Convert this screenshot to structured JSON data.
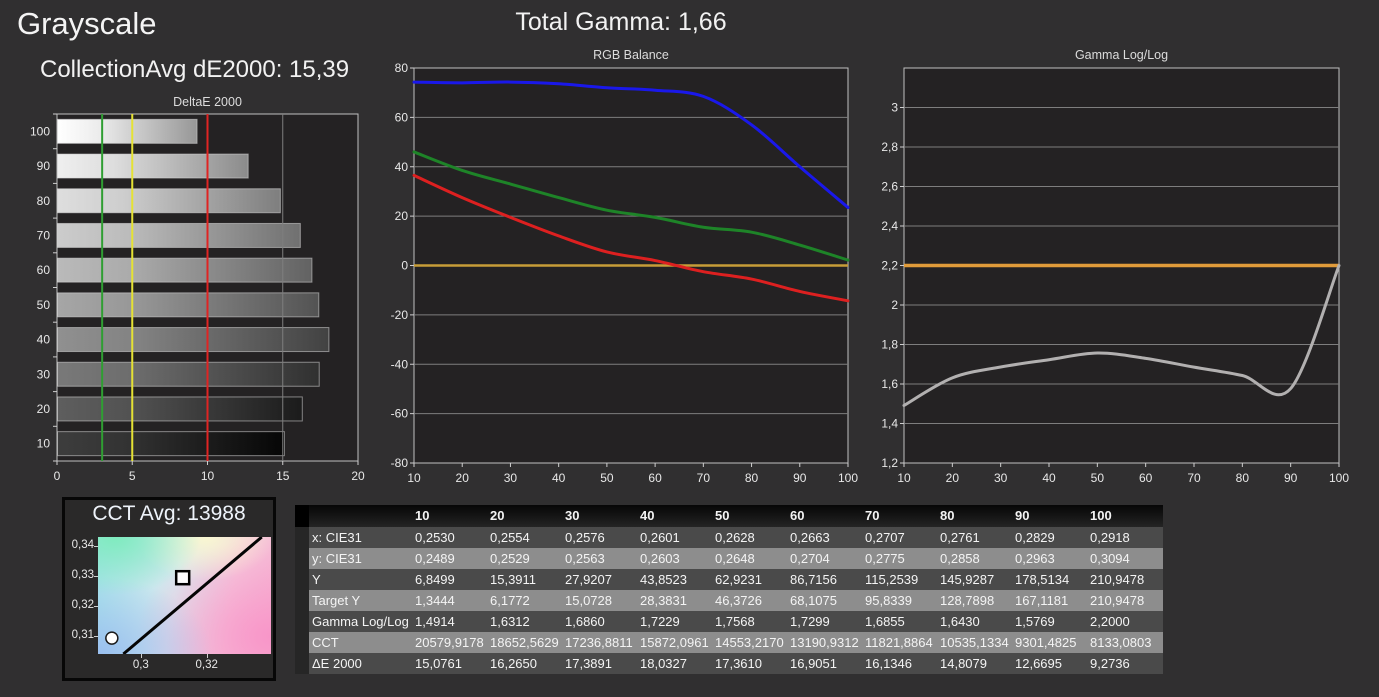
{
  "header": {
    "title": "Grayscale",
    "collection_avg": "CollectionAvg dE2000: 15,39",
    "total_gamma": "Total Gamma: 1,66"
  },
  "colors": {
    "page_bg": "#302f30",
    "plot_bg": "#242223",
    "plot_border": "#c0c0c0",
    "gridline": "#7e7e7e",
    "tick": "#cfcfcf",
    "red_series": "#dd2020",
    "green_series": "#1e8428",
    "blue_series": "#1a18ea",
    "gamma_series": "#b2b0b0",
    "target_yellow": "#c79d38",
    "target_orange": "#e09b3a",
    "ref_green": "#2f9e32",
    "ref_yellow": "#e5e234",
    "ref_red": "#e02423",
    "locus_black": "#050505",
    "marker_white": "#ffffff"
  },
  "chart_data": [
    {
      "id": "deltae",
      "type": "bar",
      "title": "DeltaE 2000",
      "orientation": "horizontal",
      "categories": [
        "100",
        "90",
        "80",
        "70",
        "60",
        "50",
        "40",
        "30",
        "20",
        "10"
      ],
      "values": [
        9.2736,
        12.6695,
        14.8079,
        16.1346,
        16.9051,
        17.361,
        18.0327,
        17.3891,
        16.265,
        15.0761
      ],
      "xlim": [
        0,
        20
      ],
      "xticks": [
        0,
        5,
        10,
        15,
        20
      ],
      "xtick_labels": [
        "0",
        "5",
        "10",
        "15",
        "20"
      ],
      "grid_x": [
        15
      ],
      "reference_lines": [
        {
          "value": 3,
          "color_key": "ref_green"
        },
        {
          "value": 5,
          "color_key": "ref_yellow"
        },
        {
          "value": 10,
          "color_key": "ref_red"
        }
      ]
    },
    {
      "id": "rgb_balance",
      "type": "line",
      "title": "RGB Balance",
      "x": [
        10,
        20,
        30,
        40,
        50,
        60,
        70,
        80,
        90,
        100
      ],
      "xtick_labels": [
        "10",
        "20",
        "30",
        "40",
        "50",
        "60",
        "70",
        "80",
        "90",
        "100"
      ],
      "ylim": [
        -80,
        80
      ],
      "yticks": [
        {
          "v": 80,
          "label": "80"
        },
        {
          "v": 60,
          "label": "60"
        },
        {
          "v": 40,
          "label": "40"
        },
        {
          "v": 20,
          "label": "20"
        },
        {
          "v": 0,
          "label": "0"
        },
        {
          "v": -20,
          "label": "-20"
        },
        {
          "v": -40,
          "label": "-40"
        },
        {
          "v": -60,
          "label": "-60"
        },
        {
          "v": -80,
          "label": "-80"
        }
      ],
      "target_line": {
        "value": 0,
        "color_key": "target_yellow",
        "width": 2.5
      },
      "series": [
        {
          "name": "Red",
          "color_key": "red_series",
          "values": [
            36.5,
            27.5,
            19.5,
            12,
            5.5,
            2,
            -2.5,
            -5.5,
            -10.5,
            -14.3
          ]
        },
        {
          "name": "Green",
          "color_key": "green_series",
          "values": [
            46,
            38.5,
            33,
            27.5,
            22.4,
            19.5,
            15.5,
            13.5,
            8.3,
            2.2
          ]
        },
        {
          "name": "Blue",
          "color_key": "blue_series",
          "values": [
            74.3,
            74,
            74.3,
            73.6,
            72,
            71,
            68.5,
            57,
            40,
            23.5
          ]
        }
      ]
    },
    {
      "id": "gamma_loglog",
      "type": "line",
      "title": "Gamma Log/Log",
      "x": [
        10,
        20,
        30,
        40,
        50,
        60,
        70,
        80,
        90,
        100
      ],
      "xtick_labels": [
        "10",
        "20",
        "30",
        "40",
        "50",
        "60",
        "70",
        "80",
        "90",
        "100"
      ],
      "ylim": [
        1.2,
        3.2
      ],
      "yticks": [
        {
          "v": 3,
          "label": "3"
        },
        {
          "v": 2.8,
          "label": "2,8"
        },
        {
          "v": 2.6,
          "label": "2,6"
        },
        {
          "v": 2.4,
          "label": "2,4"
        },
        {
          "v": 2.2,
          "label": "2,2"
        },
        {
          "v": 2,
          "label": "2"
        },
        {
          "v": 1.8,
          "label": "1,8"
        },
        {
          "v": 1.6,
          "label": "1,6"
        },
        {
          "v": 1.4,
          "label": "1,4"
        },
        {
          "v": 1.2,
          "label": "1,2"
        }
      ],
      "target_line": {
        "value": 2.2,
        "color_key": "target_orange",
        "width": 3.5
      },
      "series": [
        {
          "name": "Gamma",
          "color_key": "gamma_series",
          "values": [
            1.4914,
            1.6312,
            1.686,
            1.7229,
            1.7568,
            1.7299,
            1.6855,
            1.643,
            1.5769,
            2.2
          ]
        }
      ]
    },
    {
      "id": "cct",
      "type": "scatter",
      "title": "CCT Avg: 13988",
      "xlim": [
        0.287,
        0.3395
      ],
      "ylim": [
        0.3039,
        0.343
      ],
      "xticks": [
        {
          "v": 0.3,
          "label": "0,3"
        },
        {
          "v": 0.32,
          "label": "0,32"
        }
      ],
      "yticks": [
        {
          "v": 0.34,
          "label": "0,34"
        },
        {
          "v": 0.33,
          "label": "0,33"
        },
        {
          "v": 0.32,
          "label": "0,32"
        },
        {
          "v": 0.31,
          "label": "0,31"
        }
      ],
      "locus_line": {
        "x1": 0.2947,
        "y1": 0.3039,
        "x2": 0.3367,
        "y2": 0.343
      },
      "markers": [
        {
          "shape": "square",
          "x": 0.3127,
          "y": 0.3294,
          "meaning": "target-white-point"
        },
        {
          "shape": "circle",
          "x": 0.2912,
          "y": 0.3092,
          "meaning": "measured-white-point"
        }
      ]
    }
  ],
  "table": {
    "columns": [
      "10",
      "20",
      "30",
      "40",
      "50",
      "60",
      "70",
      "80",
      "90",
      "100"
    ],
    "rows": [
      {
        "label": "x: CIE31",
        "values": [
          "0,2530",
          "0,2554",
          "0,2576",
          "0,2601",
          "0,2628",
          "0,2663",
          "0,2707",
          "0,2761",
          "0,2829",
          "0,2918"
        ]
      },
      {
        "label": "y: CIE31",
        "values": [
          "0,2489",
          "0,2529",
          "0,2563",
          "0,2603",
          "0,2648",
          "0,2704",
          "0,2775",
          "0,2858",
          "0,2963",
          "0,3094"
        ]
      },
      {
        "label": "Y",
        "values": [
          "6,8499",
          "15,3911",
          "27,9207",
          "43,8523",
          "62,9231",
          "86,7156",
          "115,2539",
          "145,9287",
          "178,5134",
          "210,9478"
        ]
      },
      {
        "label": "Target Y",
        "values": [
          "1,3444",
          "6,1772",
          "15,0728",
          "28,3831",
          "46,3726",
          "68,1075",
          "95,8339",
          "128,7898",
          "167,1181",
          "210,9478"
        ]
      },
      {
        "label": "Gamma Log/Log",
        "values": [
          "1,4914",
          "1,6312",
          "1,6860",
          "1,7229",
          "1,7568",
          "1,7299",
          "1,6855",
          "1,6430",
          "1,5769",
          "2,2000"
        ]
      },
      {
        "label": "CCT",
        "values": [
          "20579,9178",
          "18652,5629",
          "17236,8811",
          "15872,0961",
          "14553,2170",
          "13190,9312",
          "11821,8864",
          "10535,1334",
          "9301,4825",
          "8133,0803"
        ]
      },
      {
        "label": "ΔE 2000",
        "values": [
          "15,0761",
          "16,2650",
          "17,3891",
          "18,0327",
          "17,3610",
          "16,9051",
          "16,1346",
          "14,8079",
          "12,6695",
          "9,2736"
        ]
      }
    ]
  }
}
